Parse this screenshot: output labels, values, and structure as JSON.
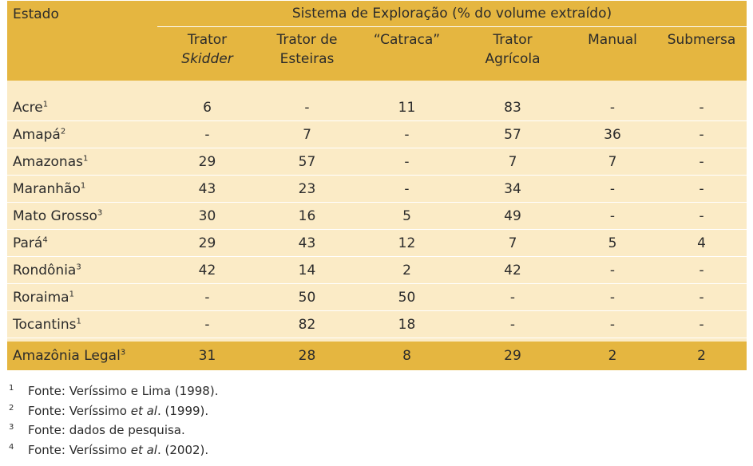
{
  "table": {
    "estado_header": "Estado",
    "group_header": "Sistema de Exploração (% do volume extraído)",
    "columns": [
      {
        "line1": "Trator",
        "line2": "Skidder"
      },
      {
        "line1": "Trator de",
        "line2": "Esteiras"
      },
      {
        "line1": "“Catraca”",
        "line2": ""
      },
      {
        "line1": "Trator",
        "line2": "Agrícola"
      },
      {
        "line1": "Manual",
        "line2": ""
      },
      {
        "line1": "Submersa",
        "line2": ""
      }
    ],
    "rows": [
      {
        "name": "Acre",
        "sup": "1",
        "values": [
          "6",
          "-",
          "11",
          "83",
          "-",
          "-"
        ]
      },
      {
        "name": "Amapá",
        "sup": "2",
        "values": [
          "-",
          "7",
          "-",
          "57",
          "36",
          "-"
        ]
      },
      {
        "name": "Amazonas",
        "sup": "1",
        "values": [
          "29",
          "57",
          "-",
          "7",
          "7",
          "-"
        ]
      },
      {
        "name": "Maranhão",
        "sup": "1",
        "values": [
          "43",
          "23",
          "-",
          "34",
          "-",
          "-"
        ]
      },
      {
        "name": "Mato Grosso",
        "sup": "3",
        "values": [
          "30",
          "16",
          "5",
          "49",
          "-",
          "-"
        ]
      },
      {
        "name": "Pará",
        "sup": "4",
        "values": [
          "29",
          "43",
          "12",
          "7",
          "5",
          "4"
        ]
      },
      {
        "name": "Rondônia",
        "sup": "3",
        "values": [
          "42",
          "14",
          "2",
          "42",
          "-",
          "-"
        ]
      },
      {
        "name": "Roraima",
        "sup": "1",
        "values": [
          "-",
          "50",
          "50",
          "-",
          "-",
          "-"
        ]
      },
      {
        "name": "Tocantins",
        "sup": "1",
        "values": [
          "-",
          "82",
          "18",
          "-",
          "-",
          "-"
        ]
      }
    ],
    "total": {
      "name": "Amazônia Legal",
      "sup": "3",
      "values": [
        "31",
        "28",
        "8",
        "29",
        "2",
        "2"
      ]
    }
  },
  "notes": [
    {
      "num": "1",
      "pre": "Fonte: Veríssimo e Lima (1998).",
      "em": "",
      "post": ""
    },
    {
      "num": "2",
      "pre": "Fonte: Veríssimo ",
      "em": "et al",
      "post": ". (1999)."
    },
    {
      "num": "3",
      "pre": "Fonte: dados de pesquisa.",
      "em": "",
      "post": ""
    },
    {
      "num": "4",
      "pre": "Fonte: Veríssimo ",
      "em": "et al",
      "post": ". (2002)."
    }
  ],
  "colors": {
    "header_bg": "#e5b640",
    "body_bg": "#fbebc6"
  }
}
